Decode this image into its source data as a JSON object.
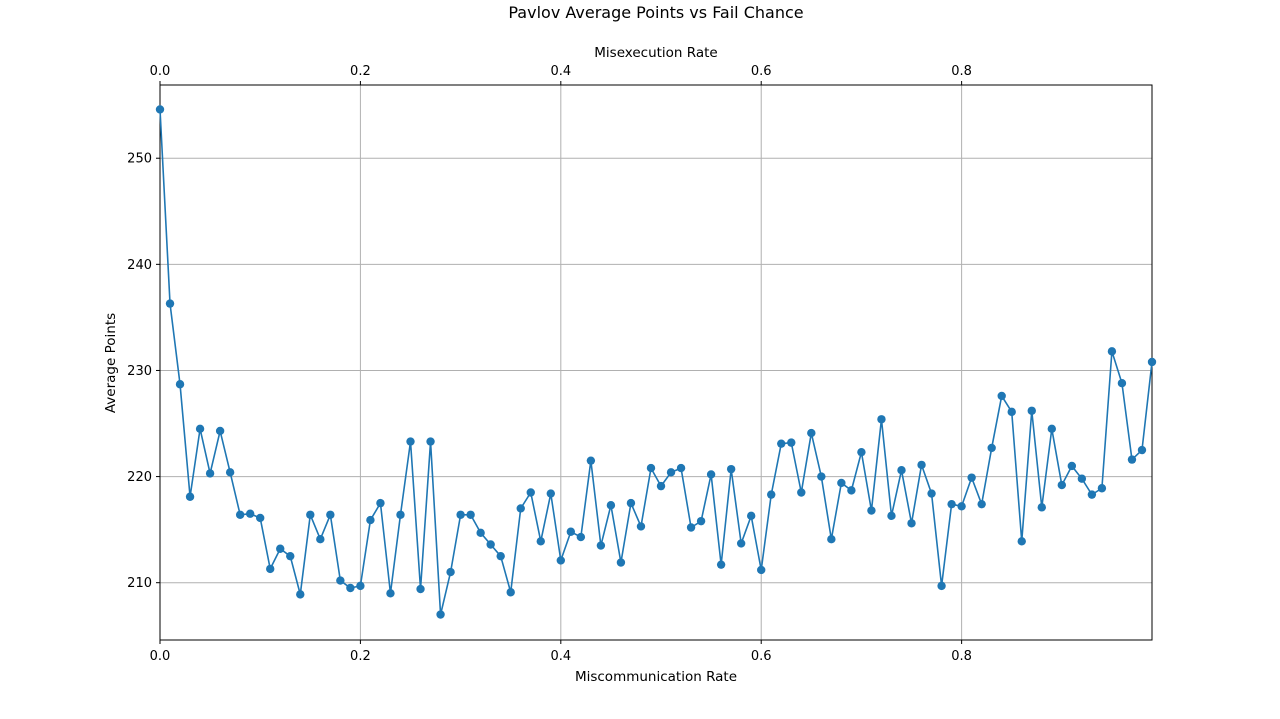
{
  "chart_data": {
    "type": "line",
    "title": "Pavlov Average Points vs Fail Chance",
    "xlabel": "Miscommunication Rate",
    "ylabel": "Average Points",
    "secondary_xlabel": "Misexecution Rate",
    "xlim": [
      0,
      0.99
    ],
    "ylim": [
      204.6,
      256.9
    ],
    "x_ticks": [
      {
        "value": 0.0,
        "label": "0.0"
      },
      {
        "value": 0.2,
        "label": "0.2"
      },
      {
        "value": 0.4,
        "label": "0.4"
      },
      {
        "value": 0.6,
        "label": "0.6"
      },
      {
        "value": 0.8,
        "label": "0.8"
      }
    ],
    "secondary_x_ticks": [
      {
        "value": 0.0,
        "label": "0.0"
      },
      {
        "value": 0.2,
        "label": "0.2"
      },
      {
        "value": 0.4,
        "label": "0.4"
      },
      {
        "value": 0.6,
        "label": "0.6"
      },
      {
        "value": 0.8,
        "label": "0.8"
      }
    ],
    "y_ticks": [
      {
        "value": 210,
        "label": "210"
      },
      {
        "value": 220,
        "label": "220"
      },
      {
        "value": 230,
        "label": "230"
      },
      {
        "value": 240,
        "label": "240"
      },
      {
        "value": 250,
        "label": "250"
      }
    ],
    "grid": true,
    "line_color": "#1f77b4",
    "marker": "circle",
    "series": [
      {
        "x": [
          0.0,
          0.01,
          0.02,
          0.03,
          0.04,
          0.05,
          0.06,
          0.07,
          0.08,
          0.09,
          0.1,
          0.11,
          0.12,
          0.13,
          0.14,
          0.15,
          0.16,
          0.17,
          0.18,
          0.19,
          0.2,
          0.21,
          0.22,
          0.23,
          0.24,
          0.25,
          0.26,
          0.27,
          0.28,
          0.29,
          0.3,
          0.31,
          0.32,
          0.33,
          0.34,
          0.35,
          0.36,
          0.37,
          0.38,
          0.39,
          0.4,
          0.41,
          0.42,
          0.43,
          0.44,
          0.45,
          0.46,
          0.47,
          0.48,
          0.49,
          0.5,
          0.51,
          0.52,
          0.53,
          0.54,
          0.55,
          0.56,
          0.57,
          0.58,
          0.59,
          0.6,
          0.61,
          0.62,
          0.63,
          0.64,
          0.65,
          0.66,
          0.67,
          0.68,
          0.69,
          0.7,
          0.71,
          0.72,
          0.73,
          0.74,
          0.75,
          0.76,
          0.77,
          0.78,
          0.79,
          0.8,
          0.81,
          0.82,
          0.83,
          0.84,
          0.85,
          0.86,
          0.87,
          0.88,
          0.89,
          0.9,
          0.91,
          0.92,
          0.93,
          0.94,
          0.95,
          0.96,
          0.97,
          0.98,
          0.99
        ],
        "y": [
          254.6,
          236.3,
          228.7,
          218.1,
          224.5,
          220.3,
          224.3,
          220.4,
          216.4,
          216.5,
          216.1,
          211.3,
          213.2,
          212.5,
          208.9,
          216.4,
          214.1,
          216.4,
          210.2,
          209.5,
          209.7,
          215.9,
          217.5,
          209.0,
          216.4,
          223.3,
          209.4,
          223.3,
          207.0,
          211.0,
          216.4,
          216.4,
          214.7,
          213.6,
          212.5,
          209.1,
          217.0,
          218.5,
          213.9,
          218.4,
          212.1,
          214.8,
          214.3,
          221.5,
          213.5,
          217.3,
          211.9,
          217.5,
          215.3,
          220.8,
          219.1,
          220.4,
          220.8,
          215.2,
          215.8,
          220.2,
          211.7,
          220.7,
          213.7,
          216.3,
          211.2,
          218.3,
          223.1,
          223.2,
          218.5,
          224.1,
          220.0,
          214.1,
          219.4,
          218.7,
          222.3,
          216.8,
          225.4,
          216.3,
          220.6,
          215.6,
          221.1,
          218.4,
          209.7,
          217.4,
          217.2,
          219.9,
          217.4,
          222.7,
          227.6,
          226.1,
          213.9,
          226.2,
          217.1,
          224.5,
          219.2,
          221.0,
          219.8,
          218.3,
          218.9,
          231.8,
          228.8,
          221.6,
          222.5,
          230.8
        ]
      }
    ]
  }
}
